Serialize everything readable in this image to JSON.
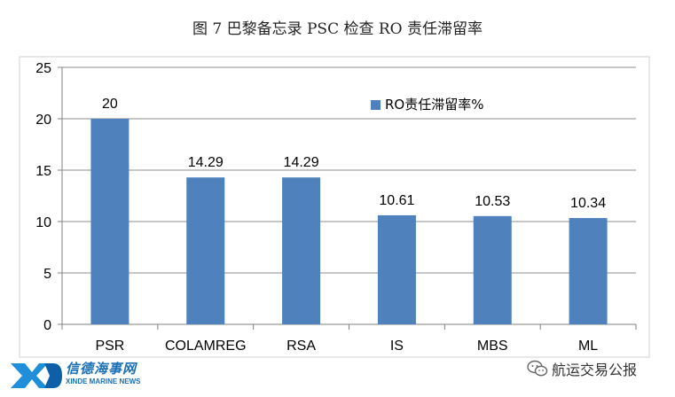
{
  "title": "图 7  巴黎备忘录 PSC 检查 RO 责任滞留率",
  "chart_data": {
    "type": "bar",
    "categories": [
      "PSR",
      "COLAMREG",
      "RSA",
      "IS",
      "MBS",
      "ML"
    ],
    "series": [
      {
        "name": "RO责任滞留率%",
        "values": [
          20,
          14.29,
          14.29,
          10.61,
          10.53,
          10.34
        ]
      }
    ],
    "data_labels": [
      "20",
      "14.29",
      "14.29",
      "10.61",
      "10.53",
      "10.34"
    ],
    "y_ticks": [
      "0",
      "5",
      "10",
      "15",
      "20",
      "25"
    ],
    "ylim": [
      0,
      25
    ],
    "grid": true,
    "legend_position": "inside-top-right",
    "bar_color": "#4f81bd"
  },
  "watermarks": {
    "left_cn": "信德海事网",
    "left_en": "XINDE MARINE NEWS",
    "right": "航运交易公报"
  }
}
